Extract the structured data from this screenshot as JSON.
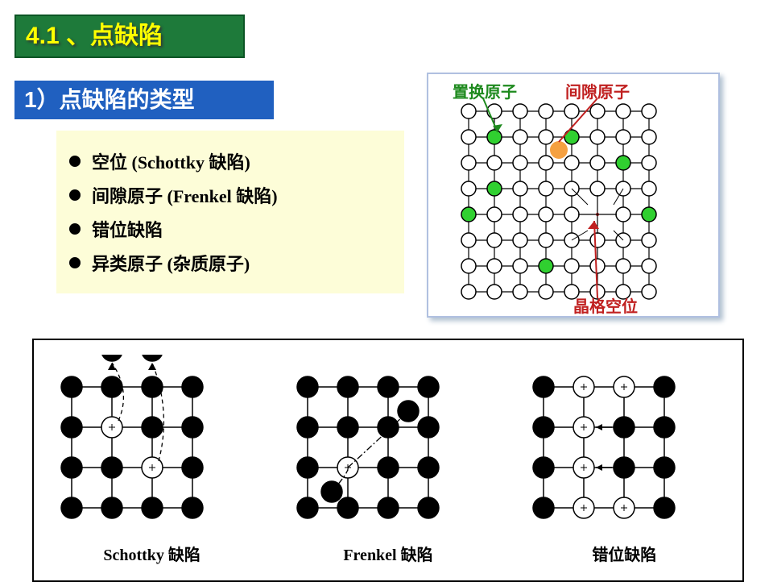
{
  "section": {
    "title": "4.1 、点缺陷"
  },
  "subsection": {
    "title": "1）点缺陷的类型"
  },
  "bullets": {
    "items": [
      "空位 (Schottky 缺陷)",
      "间隙原子 (Frenkel 缺陷)",
      "错位缺陷",
      "异类原子 (杂质原子)"
    ]
  },
  "top_diagram": {
    "label_subst": "置换原子",
    "label_inter": "间隙原子",
    "label_vacancy": "晶格空位",
    "colors": {
      "subst_label": "#1e8a1e",
      "inter_label": "#c02020",
      "vacancy_label": "#c02020",
      "atom_stroke": "#000000",
      "atom_fill": "#ffffff",
      "subst_atom": "#30d030",
      "inter_atom": "#f5a040",
      "line": "#000000"
    },
    "grid": {
      "n": 8,
      "spacing": 32,
      "ox": 50,
      "oy": 46,
      "r": 9
    },
    "subst_cells": [
      [
        1,
        1
      ],
      [
        4,
        1
      ],
      [
        1,
        3
      ],
      [
        6,
        2
      ],
      [
        0,
        4
      ],
      [
        7,
        4
      ],
      [
        3,
        6
      ]
    ],
    "inter_cell": [
      3.5,
      1.5
    ],
    "vacancy_cell": [
      5,
      4
    ]
  },
  "bottom": {
    "labels": {
      "schottky": "Schottky 缺陷",
      "frenkel": "Frenkel 缺陷",
      "disloc": "错位缺陷"
    },
    "colors": {
      "atom_fill": "#000000",
      "vac_fill": "#ffffff",
      "stroke": "#000000",
      "dash": "#000000"
    },
    "lattice": {
      "cols": 4,
      "rows": 4,
      "spacing": 50,
      "ox": 30,
      "oy": 40,
      "r": 13
    },
    "schottky": {
      "vacancies": [
        [
          1,
          1
        ],
        [
          2,
          2
        ]
      ],
      "extra_top": [
        [
          1,
          -0.9
        ],
        [
          2,
          -0.9
        ]
      ]
    },
    "frenkel": {
      "vacancies": [
        [
          1,
          2
        ]
      ],
      "interstitials": [
        [
          2.5,
          0.6
        ],
        [
          0.6,
          2.6
        ]
      ]
    },
    "disloc": {
      "open_cols": [
        1
      ],
      "shifted_col2_filled_rows": [
        1,
        2
      ],
      "arrow_from_col": 2,
      "arrow_to_col": 1,
      "arrow_rows": [
        1,
        2
      ]
    }
  }
}
